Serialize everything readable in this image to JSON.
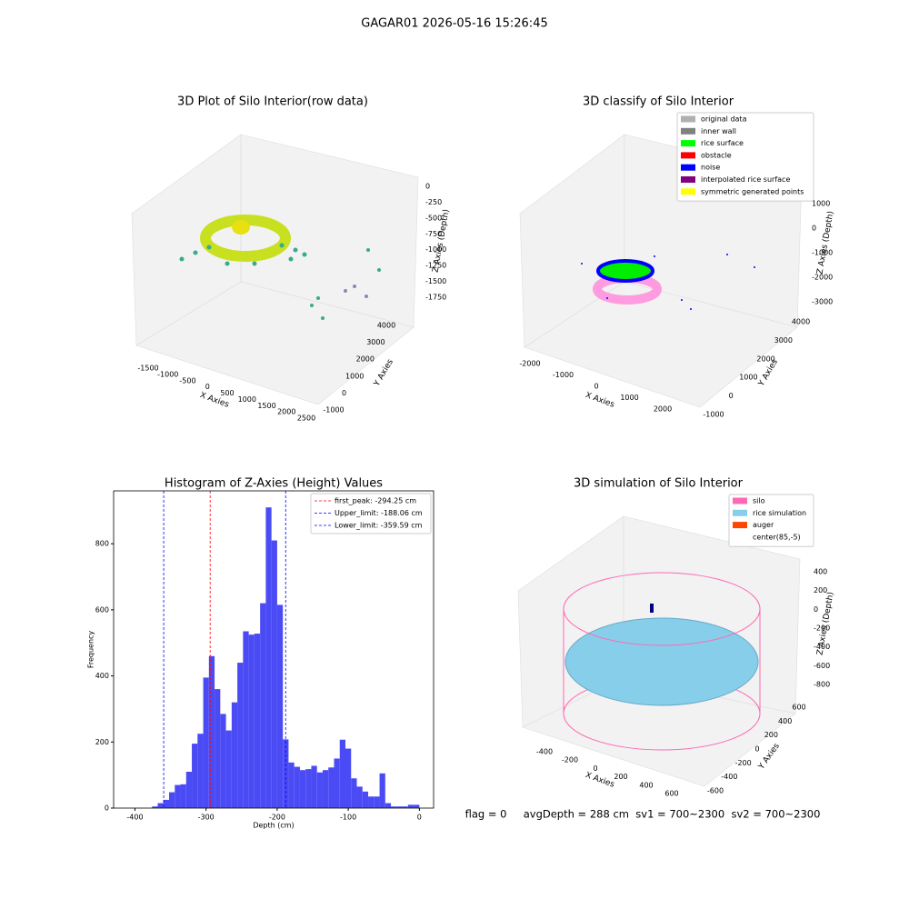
{
  "figure": {
    "title": "GAGAR01 2026-05-16 15:26:45",
    "note": "flag = 0     avgDepth = 288 cm  sv1 = 700~2300  sv2 = 700~2300"
  },
  "chart_data": [
    {
      "type": "scatter3d",
      "title": "3D Plot of Silo Interior(row data)",
      "xlabel": "X Axies",
      "ylabel": "Y Axies",
      "zlabel": "Z Axies (Depth)",
      "xticks": [
        -1500,
        -1000,
        -500,
        0,
        500,
        1000,
        1500,
        2000,
        2500
      ],
      "yticks": [
        -1000,
        0,
        1000,
        2000,
        3000,
        4000
      ],
      "zticks": [
        0,
        -250,
        -500,
        -750,
        -1000,
        -1250,
        -1500,
        -1750
      ]
    },
    {
      "type": "scatter3d",
      "title": "3D classify of Silo Interior",
      "xlabel": "X Axies",
      "ylabel": "Y Axies",
      "zlabel": "Z Axies (Depth)",
      "xticks": [
        -2000,
        -1000,
        0,
        1000,
        2000
      ],
      "yticks": [
        -1000,
        0,
        1000,
        2000,
        3000,
        4000
      ],
      "zticks": [
        1000,
        0,
        -1000,
        -2000,
        -3000
      ],
      "legend": [
        {
          "name": "original data",
          "color": "#b0b0b0"
        },
        {
          "name": "inner wall",
          "color": "#808080"
        },
        {
          "name": "rice surface",
          "color": "#00ff00"
        },
        {
          "name": "obstacle",
          "color": "#ff0000"
        },
        {
          "name": "noise",
          "color": "#0000ff"
        },
        {
          "name": "interpolated rice surface",
          "color": "#800080"
        },
        {
          "name": "symmetric generated points",
          "color": "#ffff00"
        }
      ]
    },
    {
      "type": "histogram",
      "title": "Histogram of Z-Axies (Height) Values",
      "xlabel": "Depth (cm)",
      "ylabel": "Frequency",
      "color": "#4b4bf5",
      "bins": [
        -376,
        -368,
        -360,
        -352,
        -344,
        -336,
        -328,
        -320,
        -312,
        -304,
        -296,
        -288,
        -280,
        -272,
        -264,
        -256,
        -248,
        -240,
        -232,
        -224,
        -216,
        -208,
        -200,
        -192,
        -184,
        -176,
        -168,
        -160,
        -152,
        -144,
        -136,
        -128,
        -120,
        -112,
        -104,
        -96,
        -88,
        -80,
        -72,
        -64,
        -56,
        -48,
        -40,
        -32,
        -24,
        -16,
        -8,
        0
      ],
      "values": [
        5,
        15,
        25,
        48,
        70,
        72,
        110,
        195,
        225,
        395,
        460,
        360,
        285,
        235,
        320,
        440,
        535,
        525,
        528,
        620,
        910,
        810,
        615,
        208,
        138,
        125,
        115,
        118,
        128,
        108,
        115,
        123,
        150,
        207,
        180,
        90,
        65,
        50,
        35,
        35,
        105,
        15,
        5,
        5,
        5,
        10,
        10
      ],
      "xlim": [
        -430,
        20
      ],
      "ylim": [
        0,
        960
      ],
      "xticks": [
        -400,
        -300,
        -200,
        -100,
        0
      ],
      "yticks": [
        0,
        200,
        400,
        600,
        800
      ],
      "vlines": [
        {
          "name": "first_peak: -294.25 cm",
          "value": -294.25,
          "color": "#ff0000"
        },
        {
          "name": "Upper_limit: -188.06 cm",
          "value": -188.06,
          "color": "#0000ff"
        },
        {
          "name": "Lower_limit: -359.59 cm",
          "value": -359.59,
          "color": "#0000ff"
        }
      ]
    },
    {
      "type": "surface3d",
      "title": "3D simulation of Silo Interior",
      "xlabel": "X Axies",
      "ylabel": "Y Axies",
      "zlabel": "Z Axies (Depth)",
      "xticks": [
        -400,
        -200,
        0,
        200,
        400,
        600
      ],
      "yticks": [
        -600,
        -400,
        -200,
        0,
        200,
        400,
        600
      ],
      "zticks": [
        400,
        200,
        0,
        -200,
        -400,
        -600,
        -800
      ],
      "legend": [
        {
          "name": "silo",
          "color": "#ff69b4"
        },
        {
          "name": "rice simulation",
          "color": "#87ceeb"
        },
        {
          "name": "auger",
          "color": "#ff4500"
        },
        {
          "name": "center(85,-5)",
          "color": "#ffffff"
        }
      ]
    }
  ]
}
